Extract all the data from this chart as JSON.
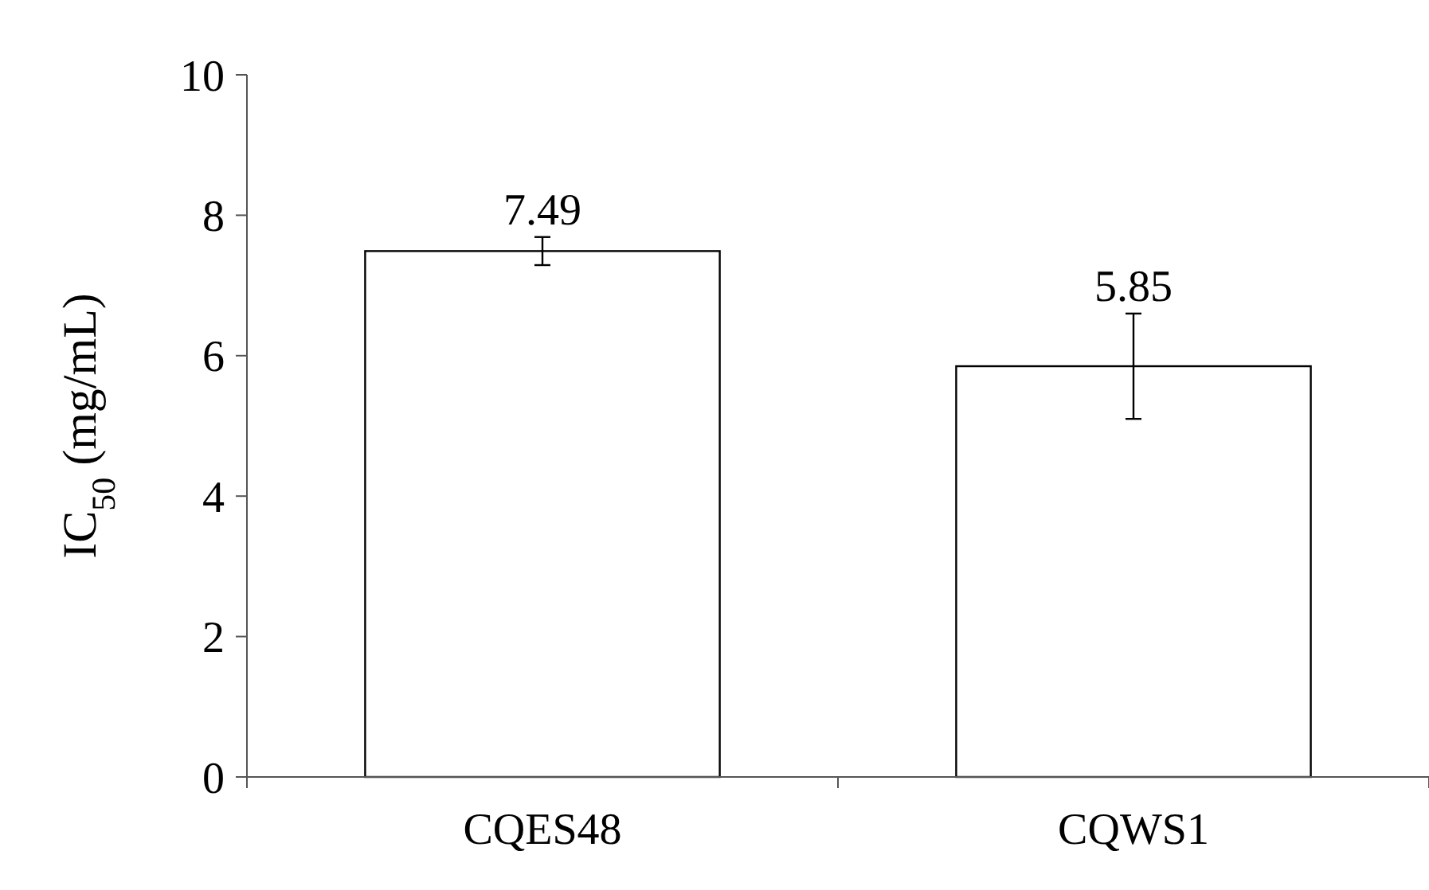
{
  "chart_data": {
    "type": "bar",
    "ylabel": "IC$_{50}$ (mg/mL)",
    "categories": [
      "CQES48",
      "CQWS1"
    ],
    "values": [
      7.49,
      5.85
    ],
    "errors": [
      0.2,
      0.75
    ],
    "color": "#ffffff",
    "ylim": [
      0,
      10
    ],
    "yticks": [
      0,
      2,
      4,
      6,
      8,
      10
    ],
    "data_labels": true,
    "grid": false
  }
}
